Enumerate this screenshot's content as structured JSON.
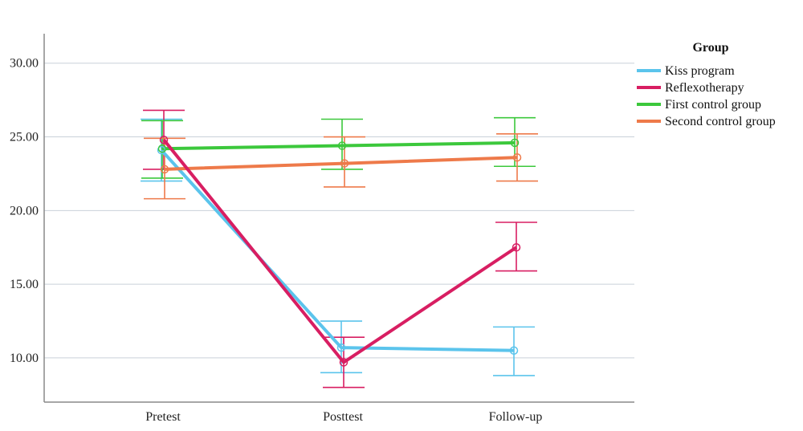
{
  "chart_data": {
    "type": "line",
    "title": "",
    "xlabel": "",
    "ylabel": "",
    "categories": [
      "Pretest",
      "Posttest",
      "Follow-up"
    ],
    "ylim": [
      7.0,
      32.0
    ],
    "yticks": [
      "10.00",
      "15.00",
      "20.00",
      "25.00",
      "30.00"
    ],
    "grid": true,
    "legend": {
      "title": "Group",
      "position": "right"
    },
    "error_bars": true,
    "series": [
      {
        "name": "Kiss program",
        "color": "#5bc4ec",
        "values": [
          24.1,
          10.7,
          10.5
        ],
        "lower": [
          22.0,
          9.0,
          8.8
        ],
        "upper": [
          26.2,
          12.5,
          12.1
        ]
      },
      {
        "name": "Reflexotherapy",
        "color": "#d81e62",
        "values": [
          24.8,
          9.7,
          17.5
        ],
        "lower": [
          22.8,
          8.0,
          15.9
        ],
        "upper": [
          26.8,
          11.4,
          19.2
        ]
      },
      {
        "name": "First control group",
        "color": "#3cc83c",
        "values": [
          24.2,
          24.4,
          24.6
        ],
        "lower": [
          22.2,
          22.8,
          23.0
        ],
        "upper": [
          26.1,
          26.2,
          26.3
        ]
      },
      {
        "name": "Second control group",
        "color": "#ee7a4a",
        "values": [
          22.8,
          23.2,
          23.6
        ],
        "lower": [
          20.8,
          21.6,
          22.0
        ],
        "upper": [
          24.9,
          25.0,
          25.2
        ]
      }
    ]
  }
}
